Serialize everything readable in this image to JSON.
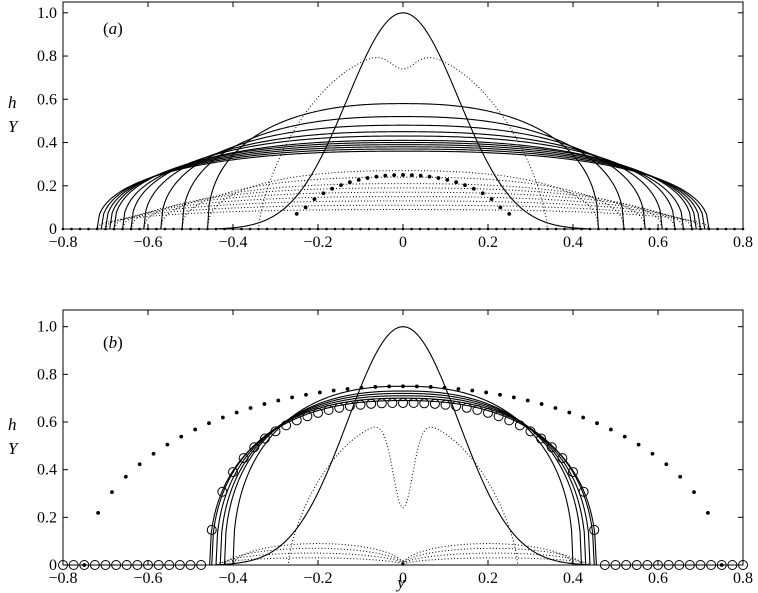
{
  "chart_data": [
    {
      "type": "line",
      "panel_label_open": "(",
      "panel_label_letter": "a",
      "panel_label_close": ")",
      "ylabel_top": "h",
      "ylabel_bottom": "Y",
      "xlabel": "",
      "xlim": [
        -0.8,
        0.8
      ],
      "ylim": [
        0,
        1.05
      ],
      "xticks": [
        "−0.8",
        "−0.6",
        "−0.4",
        "−0.2",
        "0",
        "0.2",
        "0.4",
        "0.6",
        "0.8"
      ],
      "yticks": [
        "0",
        "0.2",
        "0.4",
        "0.6",
        "0.8",
        "1.0"
      ],
      "grid": false,
      "solid_profiles_h": [
        {
          "half_width": 0.44,
          "peak": 1.0,
          "shape": "bell"
        },
        {
          "half_width": 0.46,
          "peak": 0.58,
          "shape": "cap"
        },
        {
          "half_width": 0.52,
          "peak": 0.52,
          "shape": "cap"
        },
        {
          "half_width": 0.57,
          "peak": 0.48,
          "shape": "cap"
        },
        {
          "half_width": 0.61,
          "peak": 0.45,
          "shape": "cap"
        },
        {
          "half_width": 0.64,
          "peak": 0.43,
          "shape": "cap"
        },
        {
          "half_width": 0.66,
          "peak": 0.41,
          "shape": "cap"
        },
        {
          "half_width": 0.68,
          "peak": 0.4,
          "shape": "cap"
        },
        {
          "half_width": 0.69,
          "peak": 0.39,
          "shape": "cap"
        },
        {
          "half_width": 0.7,
          "peak": 0.38,
          "shape": "cap"
        },
        {
          "half_width": 0.71,
          "peak": 0.37,
          "shape": "cap"
        },
        {
          "half_width": 0.72,
          "peak": 0.36,
          "shape": "cap"
        }
      ],
      "dotted_profiles_Y": [
        {
          "half_width": 0.34,
          "peak": 0.82,
          "dip": 0.74,
          "shape": "double_hump"
        },
        {
          "half_width": 0.46,
          "peak": 0.27,
          "shape": "cap"
        },
        {
          "half_width": 0.52,
          "peak": 0.24,
          "shape": "cap"
        },
        {
          "half_width": 0.57,
          "peak": 0.21,
          "shape": "cap"
        },
        {
          "half_width": 0.61,
          "peak": 0.19,
          "shape": "cap"
        },
        {
          "half_width": 0.64,
          "peak": 0.17,
          "shape": "cap"
        },
        {
          "half_width": 0.66,
          "peak": 0.15,
          "shape": "cap"
        },
        {
          "half_width": 0.68,
          "peak": 0.13,
          "shape": "cap"
        },
        {
          "half_width": 0.7,
          "peak": 0.11,
          "shape": "cap"
        },
        {
          "half_width": 0.72,
          "peak": 0.09,
          "shape": "cap"
        }
      ],
      "initial_Y_dots": {
        "half_width": 0.25,
        "peak": 0.25,
        "floor": 0.07
      },
      "baseline_dots": true
    },
    {
      "type": "line",
      "panel_label_open": "(",
      "panel_label_letter": "b",
      "panel_label_close": ")",
      "ylabel_top": "h",
      "ylabel_bottom": "Y",
      "xlabel": "y",
      "xlim": [
        -0.8,
        0.8
      ],
      "ylim": [
        0,
        1.05
      ],
      "xticks": [
        "−0.8",
        "−0.6",
        "−0.4",
        "−0.2",
        "0",
        "0.2",
        "0.4",
        "0.6",
        "0.8"
      ],
      "yticks": [
        "0",
        "0.2",
        "0.4",
        "0.6",
        "0.8",
        "1.0"
      ],
      "grid": false,
      "solid_profiles_h": [
        {
          "half_width": 0.44,
          "peak": 1.0,
          "shape": "bell"
        },
        {
          "half_width": 0.4,
          "peak": 0.75,
          "shape": "cap"
        },
        {
          "half_width": 0.42,
          "peak": 0.73,
          "shape": "cap"
        },
        {
          "half_width": 0.43,
          "peak": 0.72,
          "shape": "cap"
        },
        {
          "half_width": 0.44,
          "peak": 0.71,
          "shape": "cap"
        },
        {
          "half_width": 0.45,
          "peak": 0.7,
          "shape": "cap"
        },
        {
          "half_width": 0.455,
          "peak": 0.69,
          "shape": "cap"
        }
      ],
      "dotted_profiles_Y": [
        {
          "half_width": 0.27,
          "peak": 0.61,
          "dip": 0.24,
          "shape": "double_hump"
        },
        {
          "half_width": 0.4,
          "peak": 0.09,
          "shape": "double_cap"
        },
        {
          "half_width": 0.42,
          "peak": 0.07,
          "shape": "double_cap"
        },
        {
          "half_width": 0.43,
          "peak": 0.05,
          "shape": "double_cap"
        },
        {
          "half_width": 0.44,
          "peak": 0.03,
          "shape": "double_cap"
        }
      ],
      "initial_Y_dots": {
        "half_width": 0.75,
        "peak": 0.75
      },
      "circle_markers": {
        "half_width": 0.455,
        "peak": 0.68,
        "spacing": 0.025
      },
      "baseline_dots": false
    }
  ]
}
